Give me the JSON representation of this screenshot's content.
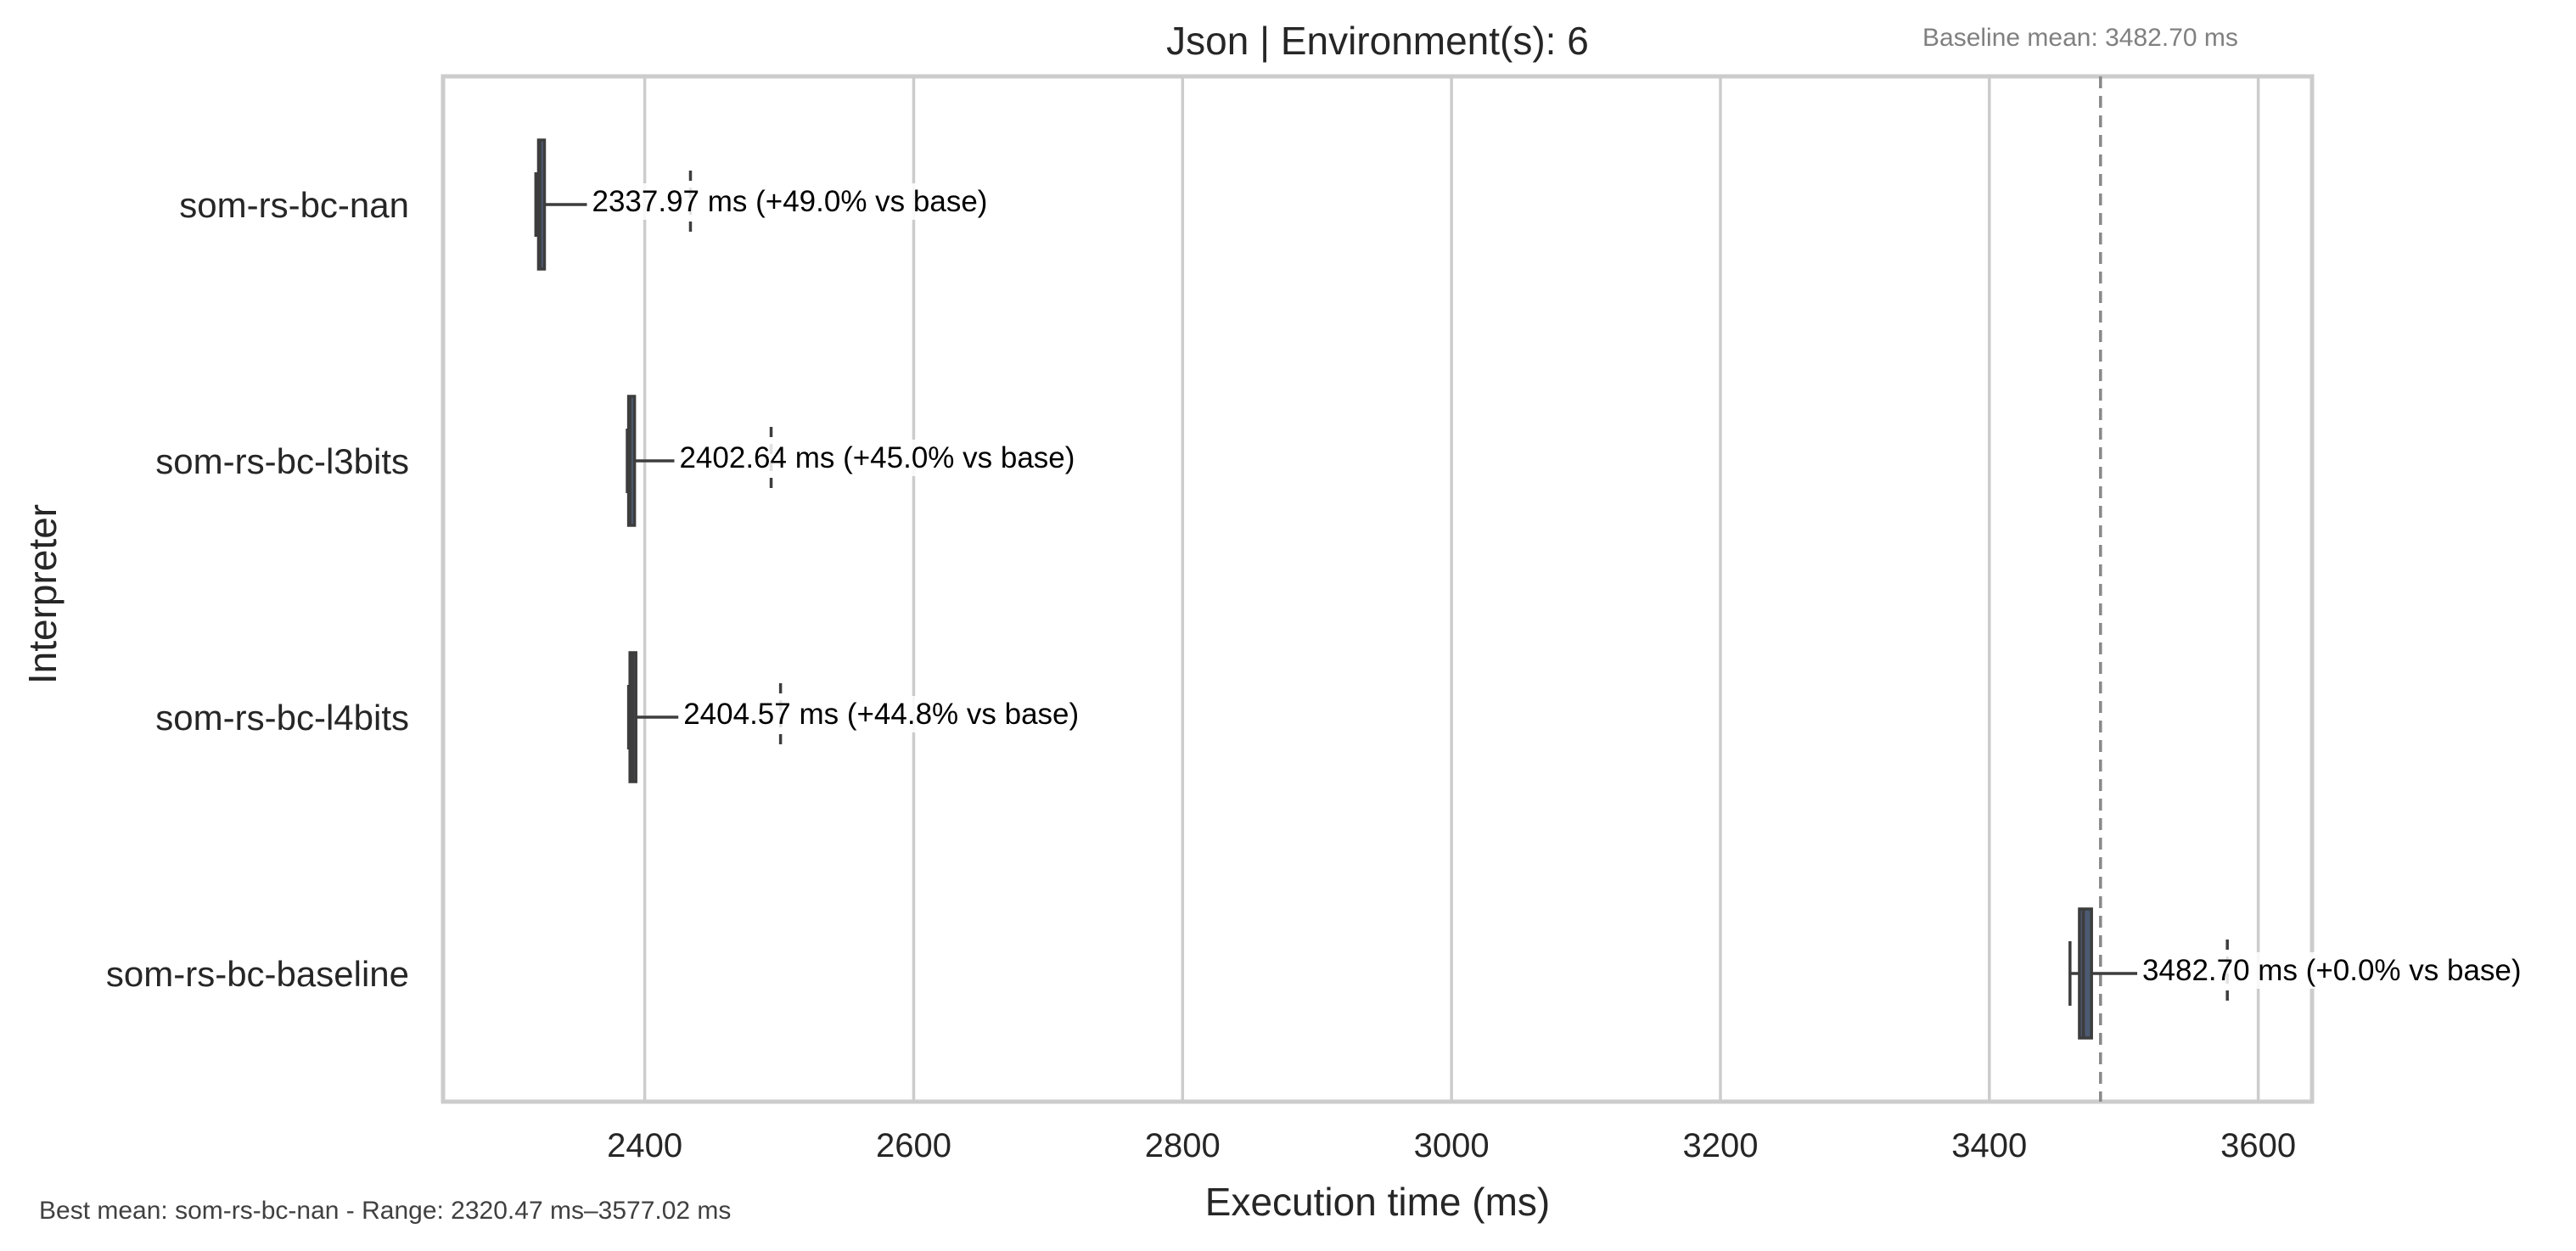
{
  "chart_data": {
    "type": "box",
    "title": "Json | Environment(s): 6",
    "baseline_note": "Baseline mean: 3482.70 ms",
    "xlabel": "Execution time (ms)",
    "ylabel": "Interpreter",
    "xlim": [
      2250,
      3640
    ],
    "xticks": [
      2400,
      2600,
      2800,
      3000,
      3200,
      3400,
      3600
    ],
    "x_tick_labels": [
      "2400",
      "2600",
      "2800",
      "3000",
      "3200",
      "3400",
      "3600"
    ],
    "grid": "vertical",
    "baseline_mean": 3482.7,
    "categories": [
      "som-rs-bc-nan",
      "som-rs-bc-l3bits",
      "som-rs-bc-l4bits",
      "som-rs-bc-baseline"
    ],
    "series": [
      {
        "category": "som-rs-bc-nan",
        "min": 2319,
        "q1": 2321,
        "median": 2322,
        "q3": 2324,
        "max": 2357,
        "mean": 2337.97,
        "outlier": 2434,
        "label": "2337.97 ms  (+49.0% vs base)"
      },
      {
        "category": "som-rs-bc-l3bits",
        "min": 2387,
        "q1": 2388,
        "median": 2389,
        "q3": 2390,
        "max": 2422,
        "mean": 2402.64,
        "outlier": 2494,
        "label": "2402.64 ms  (+45.0% vs base)"
      },
      {
        "category": "som-rs-bc-l4bits",
        "min": 2388,
        "q1": 2389,
        "median": 2391,
        "q3": 2393,
        "max": 2425,
        "mean": 2404.57,
        "outlier": 2501,
        "label": "2404.57 ms  (+44.8% vs base)"
      },
      {
        "category": "som-rs-bc-baseline",
        "min": 3460,
        "q1": 3467,
        "median": 3470,
        "q3": 3476,
        "max": 3510,
        "mean": 3482.7,
        "outlier": 3577,
        "label": "3482.70 ms  (+0.0% vs base)"
      }
    ],
    "footnote": "Best mean: som-rs-bc-nan - Range: 2320.47 ms–3577.02 ms",
    "colors": {
      "box_fill": "#4c5a72",
      "box_line": "#3d3d3d",
      "grid": "#cccccc",
      "frame": "#cccccc",
      "baseline_line": "#888888",
      "text": "#262626"
    }
  }
}
